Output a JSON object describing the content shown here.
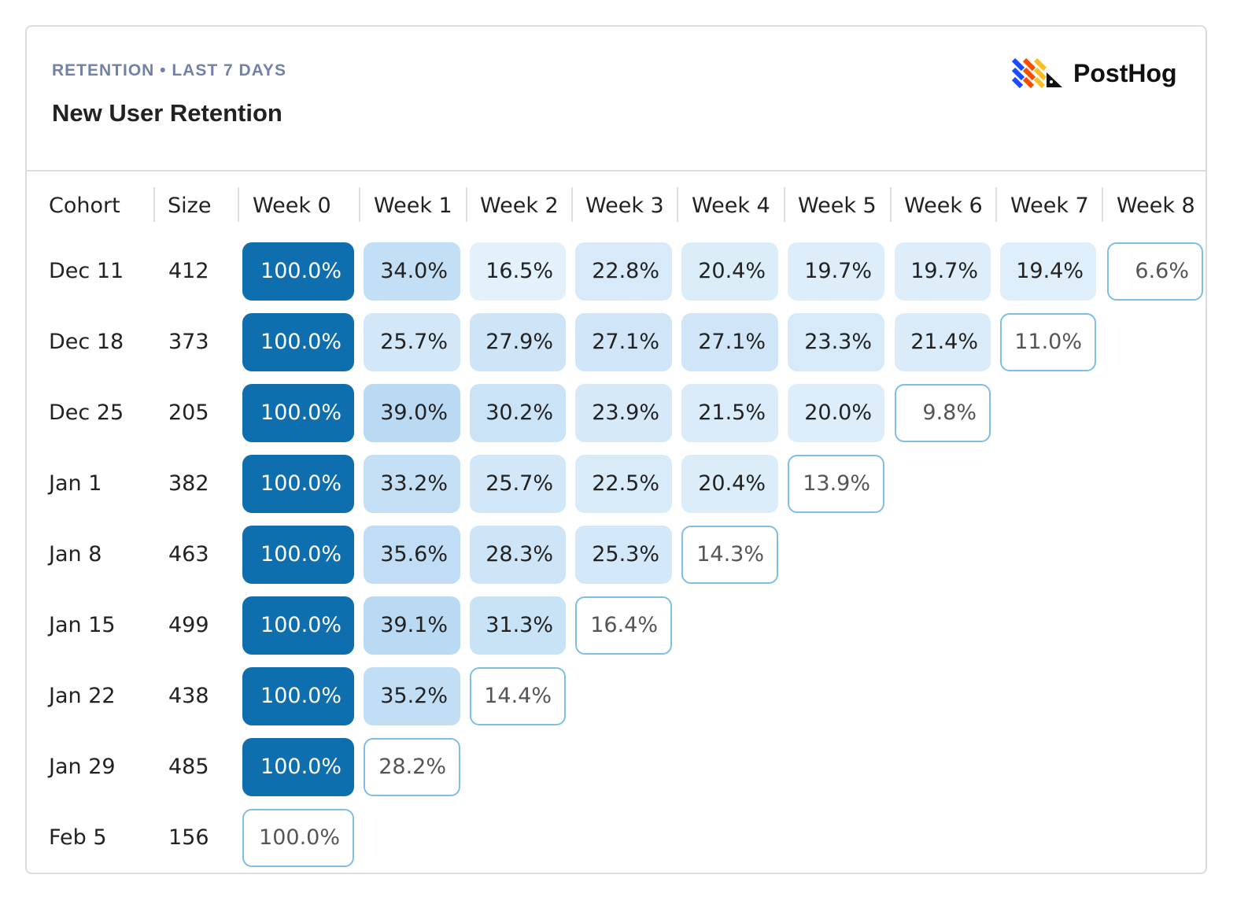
{
  "header": {
    "eyebrow": "RETENTION • LAST 7 DAYS",
    "title": "New User Retention",
    "brand": "PostHog"
  },
  "colors": {
    "full": "#0f6ead",
    "low": "#e6f2fc",
    "high": "#b8d9f3",
    "outline": "#7fbde6"
  },
  "chart_data": {
    "type": "heatmap",
    "columns": [
      "Cohort",
      "Size",
      "Week 0",
      "Week 1",
      "Week 2",
      "Week 3",
      "Week 4",
      "Week 5",
      "Week 6",
      "Week 7",
      "Week 8"
    ],
    "rows": [
      {
        "cohort": "Dec 11",
        "size": "412",
        "values": [
          "100.0%",
          "34.0%",
          "16.5%",
          "22.8%",
          "20.4%",
          "19.7%",
          "19.7%",
          "19.4%",
          "6.6%"
        ]
      },
      {
        "cohort": "Dec 18",
        "size": "373",
        "values": [
          "100.0%",
          "25.7%",
          "27.9%",
          "27.1%",
          "27.1%",
          "23.3%",
          "21.4%",
          "11.0%"
        ]
      },
      {
        "cohort": "Dec 25",
        "size": "205",
        "values": [
          "100.0%",
          "39.0%",
          "30.2%",
          "23.9%",
          "21.5%",
          "20.0%",
          "9.8%"
        ]
      },
      {
        "cohort": "Jan 1",
        "size": "382",
        "values": [
          "100.0%",
          "33.2%",
          "25.7%",
          "22.5%",
          "20.4%",
          "13.9%"
        ]
      },
      {
        "cohort": "Jan 8",
        "size": "463",
        "values": [
          "100.0%",
          "35.6%",
          "28.3%",
          "25.3%",
          "14.3%"
        ]
      },
      {
        "cohort": "Jan 15",
        "size": "499",
        "values": [
          "100.0%",
          "39.1%",
          "31.3%",
          "16.4%"
        ]
      },
      {
        "cohort": "Jan 22",
        "size": "438",
        "values": [
          "100.0%",
          "35.2%",
          "14.4%"
        ]
      },
      {
        "cohort": "Jan 29",
        "size": "485",
        "values": [
          "100.0%",
          "28.2%"
        ]
      },
      {
        "cohort": "Feb 5",
        "size": "156",
        "values": [
          "100.0%"
        ]
      }
    ],
    "last_period_incomplete": true
  }
}
